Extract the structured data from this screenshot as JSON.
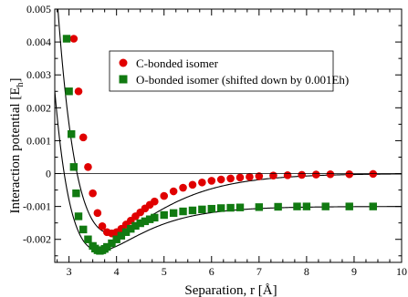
{
  "chart_data": {
    "type": "scatter",
    "xlabel": "Separation, r [Å]",
    "ylabel_main": "Interaction potential [E",
    "ylabel_sub": "h",
    "ylabel_close": "]",
    "xlim": [
      2.7,
      10
    ],
    "ylim": [
      -0.0027,
      0.005
    ],
    "xticks": [
      3,
      4,
      5,
      6,
      7,
      8,
      9,
      10
    ],
    "xtick_labels": [
      "3",
      "4",
      "5",
      "6",
      "7",
      "8",
      "9",
      "10"
    ],
    "yticks": [
      -0.002,
      -0.001,
      0,
      0.001,
      0.002,
      0.003,
      0.004,
      0.005
    ],
    "ytick_labels": [
      "-0.002",
      "-0.001",
      "0",
      "0.001",
      "0.002",
      "0.003",
      "0.004",
      "0.005"
    ],
    "grid": false,
    "legend_position": "upper-right",
    "series": [
      {
        "name": "C-bonded isomer",
        "marker": "circle",
        "color": "#e00000",
        "points": [
          [
            3.1,
            0.0041
          ],
          [
            3.2,
            0.0025
          ],
          [
            3.3,
            0.0011
          ],
          [
            3.4,
            0.0002
          ],
          [
            3.5,
            -0.0006
          ],
          [
            3.6,
            -0.0012
          ],
          [
            3.7,
            -0.0016
          ],
          [
            3.8,
            -0.00178
          ],
          [
            3.9,
            -0.00182
          ],
          [
            4.0,
            -0.00178
          ],
          [
            4.1,
            -0.00168
          ],
          [
            4.2,
            -0.00155
          ],
          [
            4.3,
            -0.00143
          ],
          [
            4.4,
            -0.0013
          ],
          [
            4.5,
            -0.00118
          ],
          [
            4.6,
            -0.00106
          ],
          [
            4.7,
            -0.00095
          ],
          [
            4.8,
            -0.00085
          ],
          [
            5.0,
            -0.00068
          ],
          [
            5.2,
            -0.00054
          ],
          [
            5.4,
            -0.00043
          ],
          [
            5.6,
            -0.00034
          ],
          [
            5.8,
            -0.00027
          ],
          [
            6.0,
            -0.00022
          ],
          [
            6.2,
            -0.00018
          ],
          [
            6.4,
            -0.00015
          ],
          [
            6.6,
            -0.00012
          ],
          [
            6.8,
            -0.0001
          ],
          [
            7.0,
            -8e-05
          ],
          [
            7.3,
            -6e-05
          ],
          [
            7.6,
            -5e-05
          ],
          [
            7.9,
            -4e-05
          ],
          [
            8.2,
            -3e-05
          ],
          [
            8.5,
            -2e-05
          ],
          [
            8.9,
            -2e-05
          ],
          [
            9.4,
            -1e-05
          ]
        ]
      },
      {
        "name": "O-bonded isomer (shifted down by 0.001Eh)",
        "marker": "square",
        "color": "#117a11",
        "points": [
          [
            2.95,
            0.0041
          ],
          [
            3.0,
            0.0025
          ],
          [
            3.05,
            0.0012
          ],
          [
            3.1,
            0.0002
          ],
          [
            3.15,
            -0.0006
          ],
          [
            3.2,
            -0.0013
          ],
          [
            3.3,
            -0.0017
          ],
          [
            3.4,
            -0.002
          ],
          [
            3.5,
            -0.0022
          ],
          [
            3.55,
            -0.00228
          ],
          [
            3.6,
            -0.00233
          ],
          [
            3.65,
            -0.00235
          ],
          [
            3.7,
            -0.00233
          ],
          [
            3.75,
            -0.00229
          ],
          [
            3.8,
            -0.00223
          ],
          [
            3.9,
            -0.00212
          ],
          [
            4.0,
            -0.002
          ],
          [
            4.1,
            -0.00189
          ],
          [
            4.2,
            -0.00178
          ],
          [
            4.3,
            -0.00168
          ],
          [
            4.4,
            -0.00159
          ],
          [
            4.5,
            -0.00151
          ],
          [
            4.6,
            -0.00145
          ],
          [
            4.7,
            -0.00139
          ],
          [
            4.8,
            -0.00134
          ],
          [
            5.0,
            -0.00126
          ],
          [
            5.2,
            -0.0012
          ],
          [
            5.4,
            -0.00115
          ],
          [
            5.6,
            -0.00112
          ],
          [
            5.8,
            -0.00109
          ],
          [
            6.0,
            -0.00107
          ],
          [
            6.2,
            -0.00105
          ],
          [
            6.4,
            -0.00104
          ],
          [
            6.6,
            -0.00103
          ],
          [
            7.0,
            -0.00102
          ],
          [
            7.4,
            -0.00101
          ],
          [
            7.8,
            -0.001
          ],
          [
            8.0,
            -0.001
          ],
          [
            8.4,
            -0.001
          ],
          [
            8.9,
            -0.001
          ],
          [
            9.4,
            -0.001
          ]
        ]
      }
    ]
  }
}
